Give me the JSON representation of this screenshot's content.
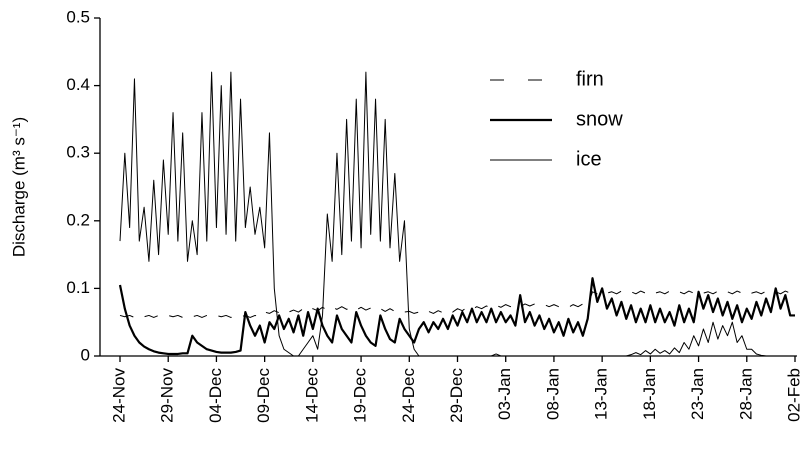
{
  "chart_data": {
    "type": "line",
    "ylabel": "Discharge (m³ s⁻¹)",
    "ylim": [
      0,
      0.5
    ],
    "yticks": [
      0,
      0.1,
      0.2,
      0.3,
      0.4,
      0.5
    ],
    "legend": "upper right",
    "categories": [
      "24-Nov",
      null,
      null,
      null,
      null,
      null,
      null,
      null,
      null,
      null,
      "29-Nov",
      null,
      null,
      null,
      null,
      null,
      null,
      null,
      null,
      null,
      "04-Dec",
      null,
      null,
      null,
      null,
      null,
      null,
      null,
      null,
      null,
      "09-Dec",
      null,
      null,
      null,
      null,
      null,
      null,
      null,
      null,
      null,
      "14-Dec",
      null,
      null,
      null,
      null,
      null,
      null,
      null,
      null,
      null,
      "19-Dec",
      null,
      null,
      null,
      null,
      null,
      null,
      null,
      null,
      null,
      "24-Dec",
      null,
      null,
      null,
      null,
      null,
      null,
      null,
      null,
      null,
      "29-Dec",
      null,
      null,
      null,
      null,
      null,
      null,
      null,
      null,
      null,
      "03-Jan",
      null,
      null,
      null,
      null,
      null,
      null,
      null,
      null,
      null,
      "08-Jan",
      null,
      null,
      null,
      null,
      null,
      null,
      null,
      null,
      null,
      "13-Jan",
      null,
      null,
      null,
      null,
      null,
      null,
      null,
      null,
      null,
      "18-Jan",
      null,
      null,
      null,
      null,
      null,
      null,
      null,
      null,
      null,
      "23-Jan",
      null,
      null,
      null,
      null,
      null,
      null,
      null,
      null,
      null,
      "28-Jan",
      null,
      null,
      null,
      null,
      null,
      null,
      null,
      null,
      null,
      "02-Feb"
    ],
    "series": [
      {
        "name": "firn",
        "color": "#000000",
        "line_style": "dashed",
        "line_width": 1,
        "values": [
          0.06,
          0.058,
          0.06,
          0.057,
          0.06,
          0.058,
          0.06,
          0.057,
          0.06,
          0.058,
          0.06,
          0.058,
          0.06,
          0.057,
          0.06,
          0.058,
          0.06,
          0.057,
          0.06,
          0.058,
          0.06,
          0.058,
          0.06,
          0.057,
          0.06,
          0.058,
          0.06,
          0.057,
          0.06,
          0.058,
          0.065,
          0.063,
          0.067,
          0.064,
          0.068,
          0.065,
          0.068,
          0.065,
          0.07,
          0.066,
          0.07,
          0.067,
          0.072,
          0.068,
          0.072,
          0.069,
          0.073,
          0.069,
          0.072,
          0.068,
          0.072,
          0.068,
          0.071,
          0.067,
          0.07,
          0.066,
          0.07,
          0.066,
          0.068,
          0.065,
          0.066,
          0.063,
          0.065,
          0.062,
          0.066,
          0.063,
          0.067,
          0.064,
          0.068,
          0.065,
          0.07,
          0.067,
          0.072,
          0.069,
          0.073,
          0.07,
          0.074,
          0.071,
          0.075,
          0.072,
          0.076,
          0.073,
          0.076,
          0.073,
          0.077,
          0.074,
          0.077,
          0.074,
          0.076,
          0.073,
          0.076,
          0.073,
          0.075,
          0.072,
          0.076,
          0.073,
          0.077,
          0.074,
          0.095,
          0.092,
          0.096,
          0.093,
          0.095,
          0.092,
          0.096,
          0.093,
          0.095,
          0.092,
          0.096,
          0.093,
          0.096,
          0.093,
          0.095,
          0.092,
          0.096,
          0.093,
          0.095,
          0.092,
          0.096,
          0.093,
          0.096,
          0.093,
          0.095,
          0.092,
          0.096,
          0.093,
          0.095,
          0.092,
          0.096,
          0.093,
          0.096,
          0.093,
          0.095,
          0.092,
          0.096,
          0.093,
          0.095,
          0.092,
          0.096,
          0.093,
          0.095
        ]
      },
      {
        "name": "snow",
        "color": "#000000",
        "line_style": "solid",
        "line_width": 2.2,
        "values": [
          0.105,
          0.07,
          0.045,
          0.03,
          0.02,
          0.014,
          0.01,
          0.007,
          0.005,
          0.004,
          0.003,
          0.003,
          0.003,
          0.004,
          0.004,
          0.03,
          0.02,
          0.015,
          0.01,
          0.008,
          0.006,
          0.005,
          0.005,
          0.005,
          0.006,
          0.008,
          0.065,
          0.045,
          0.03,
          0.045,
          0.02,
          0.05,
          0.04,
          0.06,
          0.04,
          0.055,
          0.035,
          0.06,
          0.03,
          0.065,
          0.04,
          0.07,
          0.045,
          0.03,
          0.02,
          0.06,
          0.04,
          0.03,
          0.02,
          0.065,
          0.045,
          0.03,
          0.02,
          0.015,
          0.06,
          0.04,
          0.025,
          0.02,
          0.055,
          0.04,
          0.03,
          0.02,
          0.04,
          0.05,
          0.035,
          0.05,
          0.04,
          0.055,
          0.04,
          0.06,
          0.045,
          0.065,
          0.05,
          0.07,
          0.05,
          0.065,
          0.05,
          0.07,
          0.05,
          0.065,
          0.05,
          0.06,
          0.045,
          0.09,
          0.05,
          0.065,
          0.045,
          0.06,
          0.04,
          0.055,
          0.035,
          0.05,
          0.03,
          0.055,
          0.035,
          0.05,
          0.03,
          0.055,
          0.115,
          0.08,
          0.1,
          0.07,
          0.085,
          0.06,
          0.08,
          0.055,
          0.075,
          0.05,
          0.07,
          0.05,
          0.075,
          0.05,
          0.07,
          0.05,
          0.065,
          0.045,
          0.075,
          0.05,
          0.07,
          0.05,
          0.095,
          0.07,
          0.09,
          0.065,
          0.085,
          0.06,
          0.08,
          0.055,
          0.075,
          0.05,
          0.07,
          0.055,
          0.08,
          0.06,
          0.085,
          0.065,
          0.1,
          0.07,
          0.09,
          0.06,
          0.06
        ]
      },
      {
        "name": "ice",
        "color": "#000000",
        "line_style": "solid",
        "line_width": 1,
        "values": [
          0.17,
          0.3,
          0.19,
          0.41,
          0.17,
          0.22,
          0.14,
          0.26,
          0.15,
          0.29,
          0.18,
          0.36,
          0.17,
          0.33,
          0.14,
          0.2,
          0.15,
          0.36,
          0.17,
          0.42,
          0.19,
          0.4,
          0.18,
          0.42,
          0.17,
          0.38,
          0.19,
          0.25,
          0.18,
          0.22,
          0.16,
          0.33,
          0.1,
          0.03,
          0.01,
          0.005,
          0,
          0,
          0.01,
          0.02,
          0.03,
          0.01,
          0.06,
          0.21,
          0.14,
          0.3,
          0.15,
          0.35,
          0.17,
          0.38,
          0.16,
          0.42,
          0.18,
          0.38,
          0.17,
          0.35,
          0.16,
          0.27,
          0.14,
          0.2,
          0.04,
          0.01,
          0,
          0,
          0,
          0,
          0,
          0,
          0,
          0,
          0,
          0,
          0,
          0,
          0,
          0,
          0,
          0,
          0.003,
          0,
          0,
          0,
          0,
          0,
          0,
          0,
          0,
          0,
          0,
          0,
          0,
          0,
          0,
          0,
          0,
          0,
          0,
          0,
          0,
          0,
          0,
          0,
          0,
          0,
          0,
          0,
          0.002,
          0.005,
          0.002,
          0.008,
          0.003,
          0.01,
          0.004,
          0.008,
          0.003,
          0.012,
          0.005,
          0.02,
          0.01,
          0.03,
          0.015,
          0.04,
          0.02,
          0.05,
          0.025,
          0.045,
          0.03,
          0.05,
          0.02,
          0.03,
          0.01,
          0.01,
          0.003,
          0.001,
          0,
          0,
          0,
          0,
          0,
          0,
          0
        ]
      }
    ]
  }
}
